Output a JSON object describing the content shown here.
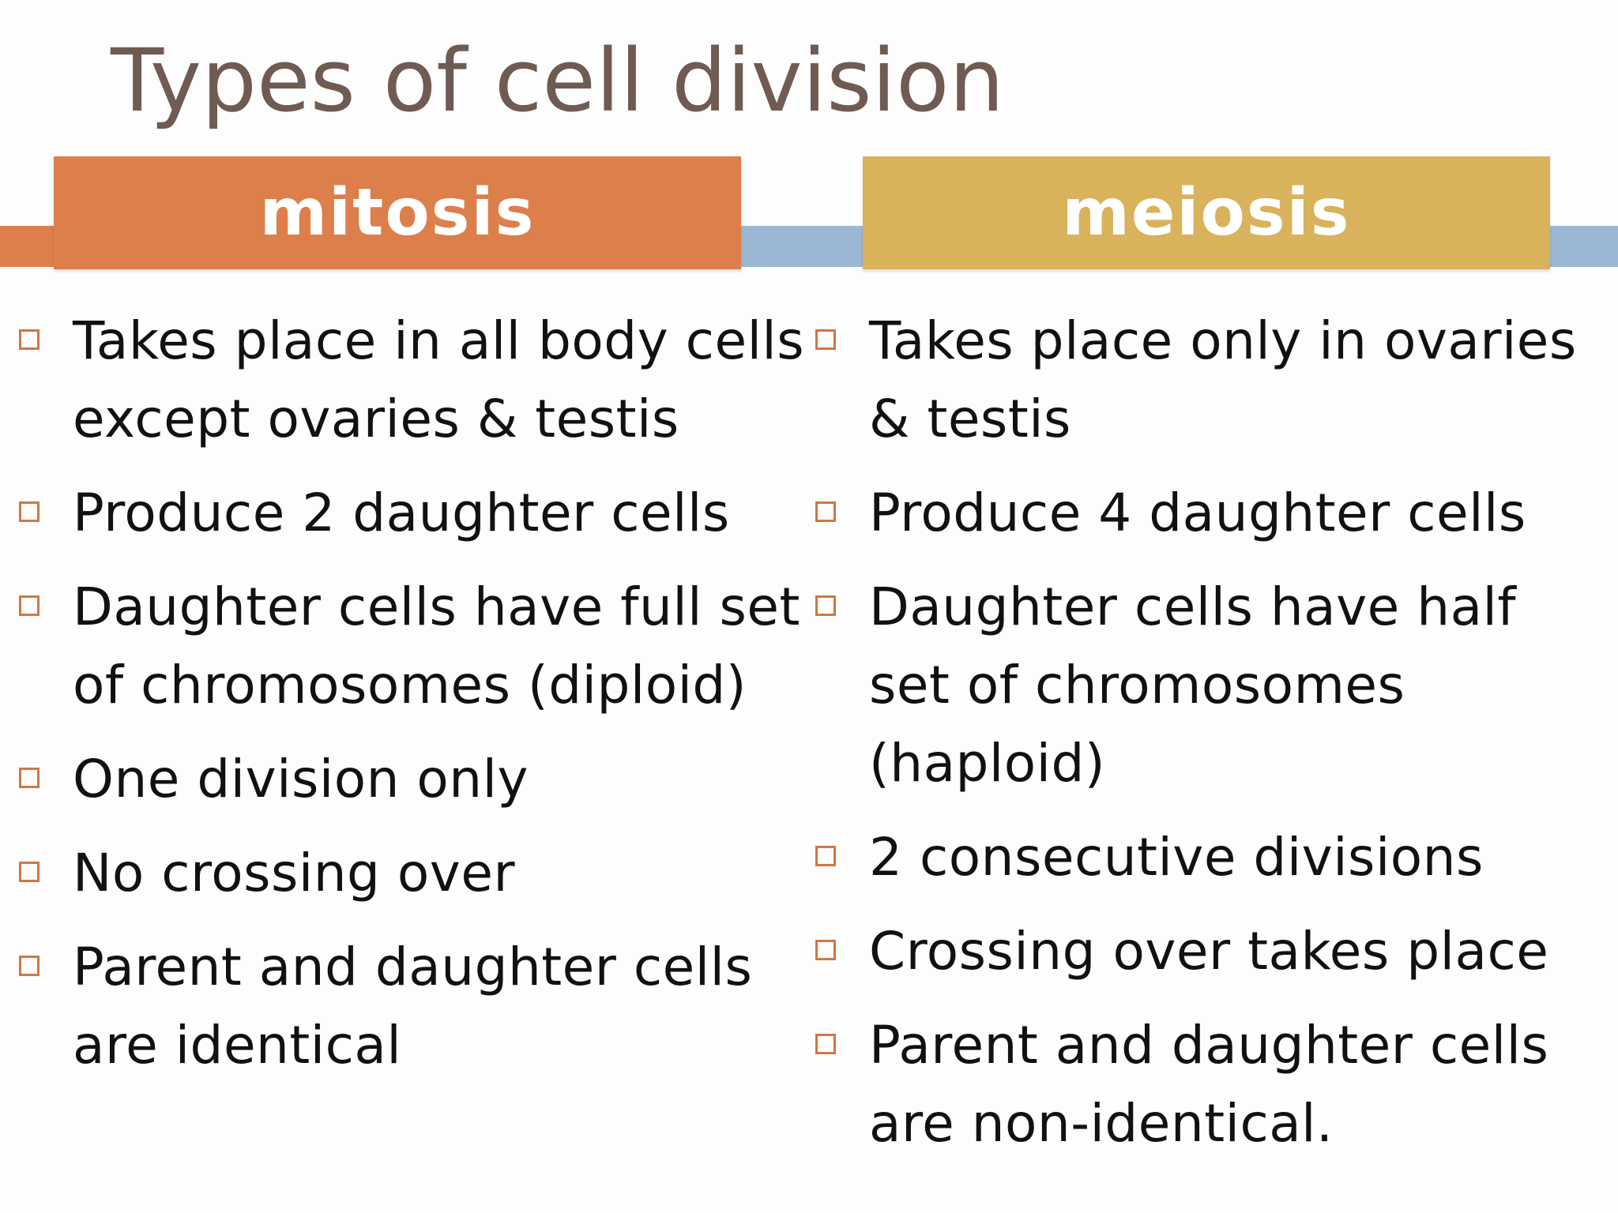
{
  "slide": {
    "title": "Types of cell division"
  },
  "colors": {
    "title": "#6f5b52",
    "mitosis": "#dc7f4b",
    "meiosis": "#d9b25c",
    "band_blue": "#9ab7d3",
    "bullet": "#cf7745",
    "text": "#111111"
  },
  "icons": {
    "bullet": "hollow-square"
  },
  "columns": {
    "mitosis": {
      "header": "mitosis",
      "items": [
        "Takes place in all body cells except ovaries & testis",
        "Produce 2 daughter cells",
        "Daughter cells have full set of chromosomes (diploid)",
        "One division only",
        "No crossing over",
        "Parent and daughter cells are identical"
      ]
    },
    "meiosis": {
      "header": "meiosis",
      "items": [
        "Takes place only in ovaries & testis",
        "Produce 4 daughter cells",
        "Daughter cells have half set of chromosomes (haploid)",
        "2 consecutive divisions",
        "Crossing over takes place",
        "Parent and daughter cells are non-identical."
      ]
    }
  }
}
